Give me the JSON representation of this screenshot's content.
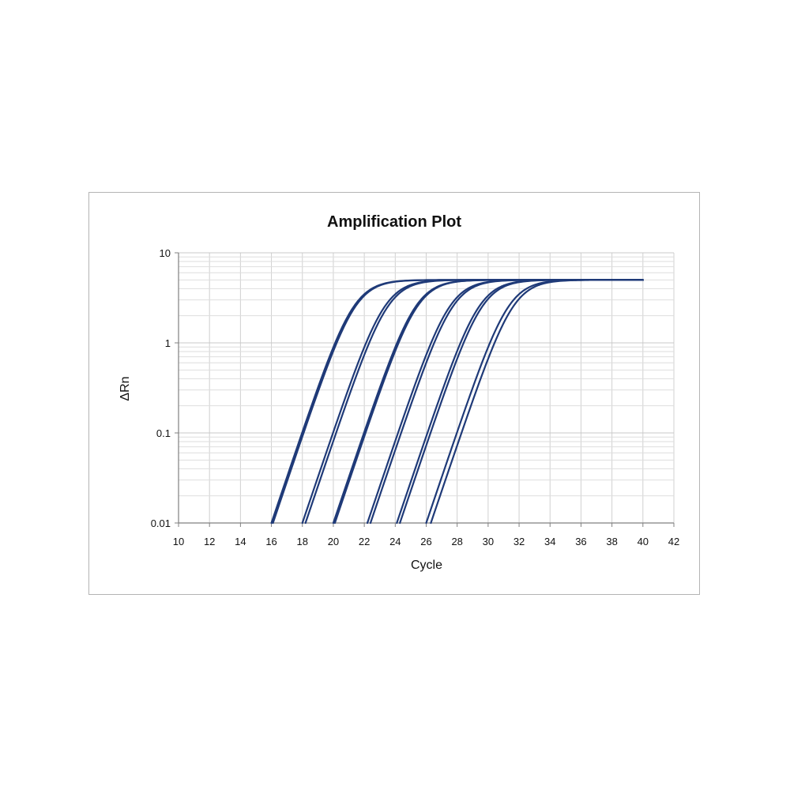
{
  "chart_data": {
    "type": "line",
    "title": "Amplification Plot",
    "xlabel": "Cycle",
    "ylabel": "ΔRn",
    "xlim": [
      10,
      42
    ],
    "ylim": [
      0.01,
      10
    ],
    "yscale": "log",
    "x_ticks": [
      "10",
      "12",
      "14",
      "16",
      "18",
      "20",
      "22",
      "24",
      "26",
      "28",
      "30",
      "32",
      "34",
      "36",
      "38",
      "40",
      "42"
    ],
    "y_ticks": [
      "0.01",
      "0.1",
      "1",
      "10"
    ],
    "grid": true,
    "legend": "none",
    "line_color": "#1f3a78",
    "plateau": 5,
    "series": [
      {
        "x_start": 16.0,
        "x_mid": 21.3
      },
      {
        "x_start": 16.1,
        "x_mid": 21.4
      },
      {
        "x_start": 18.0,
        "x_mid": 23.3
      },
      {
        "x_start": 18.2,
        "x_mid": 23.5
      },
      {
        "x_start": 20.0,
        "x_mid": 25.3
      },
      {
        "x_start": 20.1,
        "x_mid": 25.4
      },
      {
        "x_start": 22.2,
        "x_mid": 27.5
      },
      {
        "x_start": 22.4,
        "x_mid": 27.7
      },
      {
        "x_start": 24.1,
        "x_mid": 29.4
      },
      {
        "x_start": 24.3,
        "x_mid": 29.6
      },
      {
        "x_start": 26.0,
        "x_mid": 31.3
      },
      {
        "x_start": 26.3,
        "x_mid": 31.6
      }
    ],
    "x_end": 40
  }
}
